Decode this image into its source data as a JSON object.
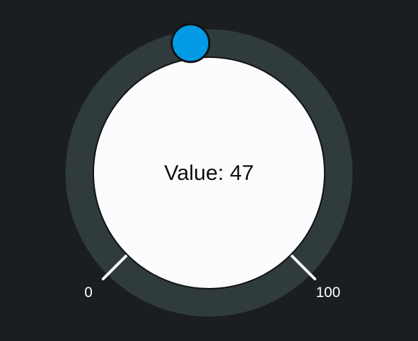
{
  "knob": {
    "value_text": "Value: 47",
    "value": 47,
    "min": 0,
    "max": 100,
    "min_label": "0",
    "max_label": "100"
  },
  "colors": {
    "background": "#1b1e21",
    "track": "#2f3b3d",
    "face": "#fcfbfd",
    "handle": "#039be5",
    "tick": "#ffffff",
    "text_dark": "#111111",
    "text_light": "#ffffff"
  }
}
